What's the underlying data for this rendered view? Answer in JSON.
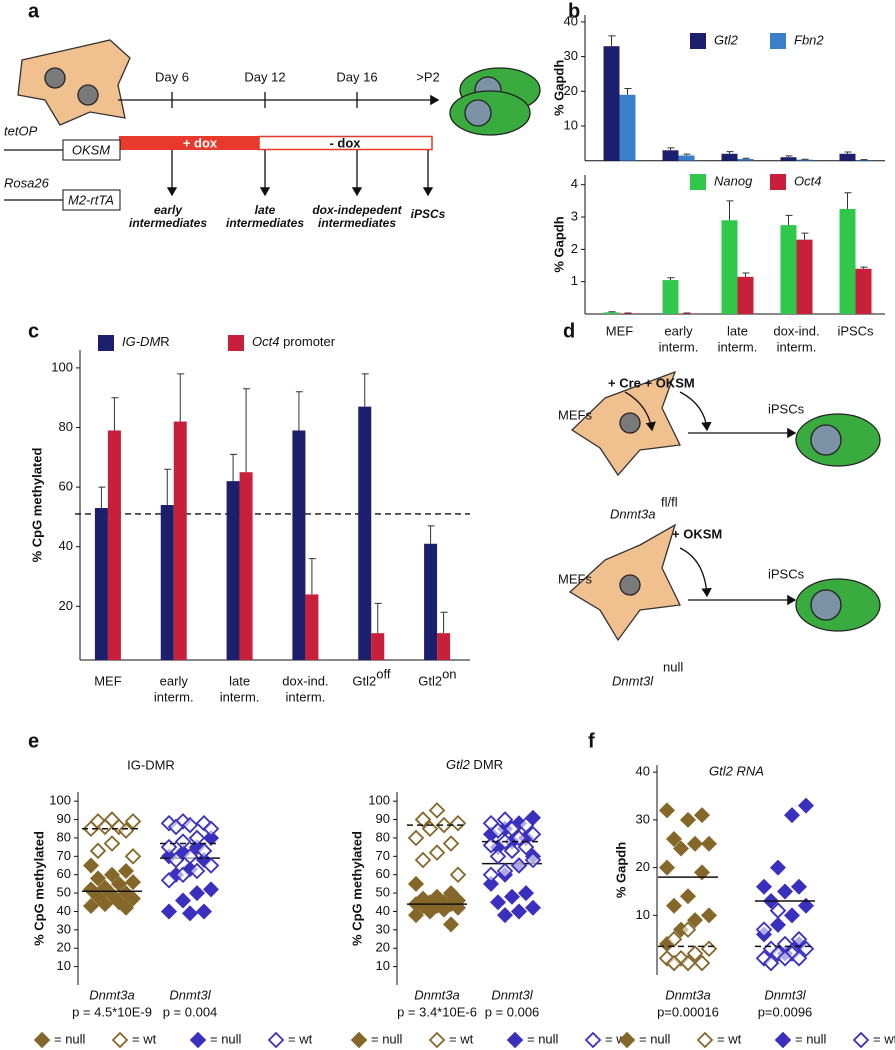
{
  "panel_a": {
    "letter": "a",
    "days": [
      "Day 6",
      "Day 12",
      "Day 16",
      ">P2"
    ],
    "phases": [
      "+ dox",
      "- dox"
    ],
    "constructs": [
      {
        "promoter": "tetOP",
        "gene": "OKSM"
      },
      {
        "promoter": "Rosa26",
        "gene": "M2-rtTA"
      }
    ],
    "stages": [
      [
        "early",
        "intermediates"
      ],
      [
        "late",
        "intermediates"
      ],
      [
        "dox-indepedent",
        "intermediates"
      ],
      [
        "iPSCs"
      ]
    ]
  },
  "panel_d": {
    "letter": "d",
    "rows": [
      {
        "source": "MEFs",
        "treatment": "+ Cre + OKSM",
        "product": "iPSCs",
        "genotype": {
          "text": "Dnmt3a",
          "sup": "fl/fl"
        }
      },
      {
        "source": "MEFs",
        "treatment": "+ OKSM",
        "product": "iPSCs",
        "genotype": {
          "text": "Dnmt3l",
          "sup": "null"
        }
      }
    ]
  },
  "chart_data": [
    {
      "type": "bar",
      "panel": "b",
      "y_label": "% Gapdh",
      "ylim": [
        0,
        42
      ],
      "yticks": [
        10,
        20,
        30,
        40
      ],
      "name_italic": true,
      "series": [
        {
          "name": "Gtl2",
          "color": "#1c1f6b",
          "values": [
            33,
            3,
            2,
            1,
            2
          ],
          "errors": [
            3,
            0.7,
            0.6,
            0.4,
            0.5
          ]
        },
        {
          "name": "Fbn2",
          "color": "#3a80c9",
          "values": [
            19,
            1.5,
            0.5,
            0.3,
            0.2
          ],
          "errors": [
            1.8,
            0.4,
            0.2,
            0.1,
            0.1
          ]
        }
      ]
    },
    {
      "type": "bar",
      "y_label": "% Gapdh",
      "ylim": [
        0,
        4.3
      ],
      "yticks": [
        1,
        2,
        3,
        4
      ],
      "name_italic": true,
      "categories": [
        [
          "MEF"
        ],
        [
          "early",
          "interm."
        ],
        [
          "late",
          "interm."
        ],
        [
          "dox-ind.",
          "interm."
        ],
        [
          "iPSCs"
        ]
      ],
      "series": [
        {
          "name": "Nanog",
          "color": "#2fc84b",
          "values": [
            0.05,
            1.05,
            2.9,
            2.75,
            3.25
          ],
          "errors": [
            0.02,
            0.07,
            0.6,
            0.3,
            0.5
          ]
        },
        {
          "name": "Oct4",
          "color": "#c8203a",
          "values": [
            0.02,
            0.02,
            1.15,
            2.3,
            1.4
          ],
          "errors": [
            0.01,
            0.01,
            0.12,
            0.2,
            0.05
          ]
        }
      ]
    },
    {
      "type": "bar",
      "panel": "c",
      "y_label": "% CpG methylated",
      "ylim": [
        2,
        106
      ],
      "yticks": [
        20,
        40,
        60,
        80,
        100
      ],
      "hline": 51,
      "categories": [
        [
          "MEF"
        ],
        [
          "early",
          "interm."
        ],
        [
          "late",
          "interm."
        ],
        [
          "dox-ind.",
          "interm."
        ],
        {
          "text": "Gtl2",
          "sup": "off"
        },
        {
          "text": "Gtl2",
          "sup": "on"
        }
      ],
      "series": [
        {
          "name": "IG-DMR",
          "color": "#1c1f6b",
          "values": [
            53,
            54,
            62,
            79,
            87,
            41
          ],
          "errors": [
            7,
            12,
            9,
            13,
            11,
            6
          ]
        },
        {
          "name": "Oct4 promoter",
          "color": "#c8203a",
          "values": [
            79,
            82,
            65,
            24,
            11,
            11
          ],
          "errors": [
            11,
            16,
            28,
            12,
            10,
            7
          ]
        }
      ]
    },
    {
      "type": "strip",
      "panel": "e",
      "title": "IG-DMR",
      "y_label": "% CpG methylated",
      "ylim": [
        0,
        105
      ],
      "yticks": [
        10,
        20,
        30,
        40,
        50,
        60,
        70,
        80,
        90,
        100
      ],
      "categories": [
        "Dnmt3a",
        "Dnmt3l"
      ],
      "p_values": [
        "p = 4.5*10E-9",
        "p = 0.004"
      ],
      "series": [
        {
          "name": "= null",
          "color": "#86672a",
          "filled": true,
          "category": 0,
          "line": 51,
          "line_style": "solid",
          "values": [
            65,
            62,
            60,
            58,
            56,
            55,
            53,
            52,
            50,
            49,
            48,
            47,
            45,
            44,
            43,
            42
          ]
        },
        {
          "name": "= wt",
          "color": "#86672a",
          "filled": false,
          "category": 0,
          "line": 85,
          "line_style": "dashed",
          "values": [
            90,
            89,
            89,
            86,
            86,
            85,
            84,
            77,
            73,
            70
          ]
        },
        {
          "name": "= null",
          "color": "#3b2fc0",
          "filled": true,
          "category": 1,
          "line": 69,
          "line_style": "solid",
          "values": [
            80,
            75,
            72,
            70,
            68,
            63,
            60,
            52,
            50,
            46,
            40,
            40,
            39
          ]
        },
        {
          "name": "= wt",
          "color": "#3b2fc0",
          "filled": false,
          "category": 1,
          "line": 77,
          "line_style": "dashed",
          "values": [
            89,
            88,
            88,
            87,
            86,
            85,
            80,
            78,
            75,
            73,
            70,
            68,
            65,
            62,
            60,
            57
          ]
        }
      ]
    },
    {
      "type": "strip",
      "title": "Gtl2 DMR",
      "title_italic_first": true,
      "y_label": "% CpG methylated",
      "ylim": [
        0,
        105
      ],
      "yticks": [
        10,
        20,
        30,
        40,
        50,
        60,
        70,
        80,
        90,
        100
      ],
      "categories": [
        "Dnmt3a",
        "Dnmt3l"
      ],
      "p_values": [
        "p = 3.4*10E-6",
        "p = 0.006"
      ],
      "series": [
        {
          "name": "= null",
          "color": "#86672a",
          "filled": true,
          "category": 0,
          "line": 44,
          "line_style": "solid",
          "values": [
            55,
            50,
            48,
            47,
            46,
            45,
            45,
            44,
            44,
            43,
            43,
            42,
            41,
            40,
            38,
            33
          ]
        },
        {
          "name": "= wt",
          "color": "#86672a",
          "filled": false,
          "category": 0,
          "line": 87,
          "line_style": "dashed",
          "values": [
            95,
            90,
            88,
            87,
            85,
            80,
            77,
            72,
            68,
            60
          ]
        },
        {
          "name": "= null",
          "color": "#3b2fc0",
          "filled": true,
          "category": 1,
          "line": 66,
          "line_style": "solid",
          "values": [
            91,
            88,
            85,
            82,
            80,
            78,
            75,
            70,
            65,
            60,
            55,
            50,
            48,
            45,
            42,
            40,
            38
          ]
        },
        {
          "name": "= wt",
          "color": "#3b2fc0",
          "filled": false,
          "category": 1,
          "line": 78,
          "line_style": "dashed",
          "values": [
            90,
            88,
            87,
            85,
            84,
            82,
            80,
            78,
            76,
            75,
            73,
            70,
            68,
            65,
            62,
            60
          ]
        }
      ]
    },
    {
      "type": "strip",
      "panel": "f",
      "title": "Gtl2 RNA",
      "title_italic": true,
      "y_label": "% Gapdh",
      "ylim": [
        -2.5,
        41.5
      ],
      "yticks": [
        10,
        20,
        30,
        40
      ],
      "categories": [
        "Dnmt3a",
        "Dnmt3l"
      ],
      "p_values": [
        "p=0.00016",
        "p=0.0096"
      ],
      "series": [
        {
          "name": "= null",
          "color": "#86672a",
          "filled": true,
          "category": 0,
          "line": 18,
          "line_style": "solid",
          "values": [
            32,
            31,
            30,
            26,
            25,
            25,
            24,
            20,
            19,
            14,
            12,
            10,
            9,
            7,
            4
          ]
        },
        {
          "name": "= wt",
          "color": "#86672a",
          "filled": false,
          "category": 0,
          "line": 3.5,
          "line_style": "dashed",
          "values": [
            7,
            5,
            3,
            2,
            1,
            1,
            0,
            0,
            0
          ]
        },
        {
          "name": "= null",
          "color": "#3b2fc0",
          "filled": true,
          "category": 1,
          "line": 13,
          "line_style": "solid",
          "values": [
            33,
            31,
            20,
            16,
            16,
            15,
            13,
            12,
            10,
            8,
            6,
            4,
            2
          ]
        },
        {
          "name": "= wt",
          "color": "#3b2fc0",
          "filled": false,
          "category": 1,
          "line": 3.5,
          "line_style": "dashed",
          "values": [
            11,
            7,
            5,
            4,
            3,
            3,
            2,
            2,
            1,
            1,
            1,
            0
          ]
        }
      ]
    }
  ]
}
